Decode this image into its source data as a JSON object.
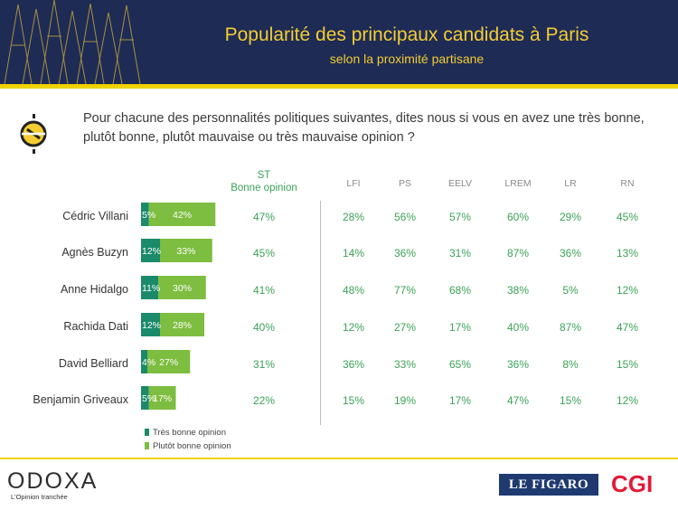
{
  "header": {
    "title": "Popularité des principaux candidats à Paris",
    "subtitle": "selon la proximité partisane"
  },
  "question": "Pour chacune des personnalités politiques suivantes, dites nous si vous en avez une très bonne, plutôt bonne, plutôt mauvaise ou très mauvaise opinion ?",
  "columns": {
    "st_line1": "ST",
    "st_line2": "Bonne opinion",
    "parties": [
      "LFI",
      "PS",
      "EELV",
      "LREM",
      "LR",
      "RN"
    ]
  },
  "legend": {
    "very_good": "Très bonne opinion",
    "rather_good": "Plutôt bonne opinion"
  },
  "colors": {
    "very_good": "#1a8a6a",
    "rather_good": "#7dbd3f",
    "green_text": "#3ba257",
    "title_gold": "#f3cd33",
    "navy": "#1e2b55"
  },
  "footer": {
    "brand": "ODOXA",
    "tagline": "L'Opinion tranchée",
    "partner1": "LE FIGARO",
    "partner2": "CGI"
  },
  "chart_data": {
    "type": "bar",
    "orientation": "horizontal",
    "stacked": true,
    "categories": [
      "Cédric Villani",
      "Agnès Buzyn",
      "Anne Hidalgo",
      "Rachida Dati",
      "David Belliard",
      "Benjamin Griveaux"
    ],
    "series": [
      {
        "name": "Très bonne opinion",
        "values": [
          5,
          12,
          11,
          12,
          4,
          5
        ]
      },
      {
        "name": "Plutôt bonne opinion",
        "values": [
          42,
          33,
          30,
          28,
          27,
          17
        ]
      }
    ],
    "bar_labels": {
      "very_good": [
        "5%",
        "12%",
        "11%",
        "12%",
        "4%",
        "5%"
      ],
      "rather_good": [
        "42%",
        "33%",
        "30%",
        "28%",
        "27%",
        "17%"
      ]
    },
    "table": {
      "columns": [
        "ST Bonne opinion",
        "LFI",
        "PS",
        "EELV",
        "LREM",
        "LR",
        "RN"
      ],
      "rows": [
        [
          "47%",
          "28%",
          "56%",
          "57%",
          "60%",
          "29%",
          "45%"
        ],
        [
          "45%",
          "14%",
          "36%",
          "31%",
          "87%",
          "36%",
          "13%"
        ],
        [
          "41%",
          "48%",
          "77%",
          "68%",
          "38%",
          "5%",
          "12%"
        ],
        [
          "40%",
          "12%",
          "27%",
          "17%",
          "40%",
          "87%",
          "47%"
        ],
        [
          "31%",
          "36%",
          "33%",
          "65%",
          "36%",
          "8%",
          "15%"
        ],
        [
          "22%",
          "15%",
          "19%",
          "17%",
          "47%",
          "15%",
          "12%"
        ]
      ]
    },
    "legend_position": "bottom-left",
    "grid": false
  }
}
